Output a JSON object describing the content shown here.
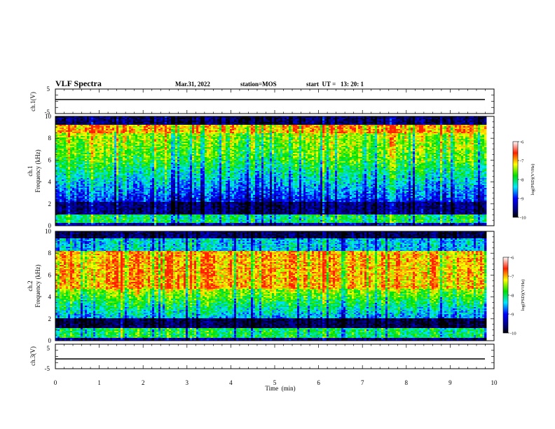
{
  "header": {
    "title": "VLF Spectra",
    "date": "Mar.31, 2022",
    "station": "station=MOS",
    "start": "start  UT =   13: 20: 1"
  },
  "chart_data": [
    {
      "type": "line",
      "panel": "ch1-waveform",
      "ylabel": "ch.1(V)",
      "yticks": [
        "5",
        "-5"
      ],
      "ylim": [
        -5,
        5
      ],
      "x": [
        0,
        9.8
      ],
      "y": [
        0,
        0
      ]
    },
    {
      "type": "heatmap",
      "panel": "ch1-spectrogram",
      "ylabel_line1": "ch.1",
      "ylabel_line2": "Frequency (kHz)",
      "ylim": [
        0,
        10
      ],
      "yticks": [
        "0",
        "2",
        "4",
        "6",
        "8",
        "10"
      ],
      "x_range": [
        0,
        9.8
      ],
      "colorbar": {
        "label": "log(PSD)(V²/Hz)",
        "ticks": [
          "-6",
          "-7",
          "-8",
          "-9",
          "-10"
        ],
        "range": [
          -10,
          -6
        ]
      }
    },
    {
      "type": "heatmap",
      "panel": "ch2-spectrogram",
      "ylabel_line1": "ch.2",
      "ylabel_line2": "Frequency (kHz)",
      "ylim": [
        0,
        10
      ],
      "yticks": [
        "0",
        "2",
        "4",
        "6",
        "8",
        "10"
      ],
      "x_range": [
        0,
        9.8
      ],
      "colorbar": {
        "label": "log(PSD)(V²/Hz)",
        "ticks": [
          "-6",
          "-7",
          "-8",
          "-9",
          "-10"
        ],
        "range": [
          -10,
          -6
        ]
      }
    },
    {
      "type": "line",
      "panel": "ch3-waveform",
      "ylabel": "ch.3(V)",
      "yticks": [
        "5",
        "-5"
      ],
      "ylim": [
        -5,
        5
      ],
      "x": [
        0,
        9.8
      ],
      "y": [
        0,
        0
      ]
    }
  ],
  "xaxis": {
    "label": "Time  (min)",
    "ticks": [
      "0",
      "1",
      "2",
      "3",
      "4",
      "5",
      "6",
      "7",
      "8",
      "9",
      "10"
    ],
    "range": [
      0,
      10
    ]
  }
}
